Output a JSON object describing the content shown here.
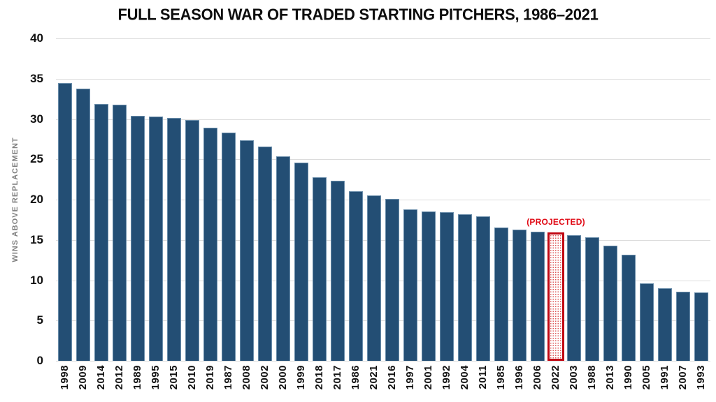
{
  "colors": {
    "bar": "#234E74",
    "bar_edge": "#9AB7CF",
    "projected_border": "#C00511",
    "projected_text": "#E00914",
    "gridline": "#DCDCDC",
    "axis_text": "#111111",
    "ylabel_text": "#7F7F7F",
    "background": "#FFFFFF"
  },
  "chart_data": {
    "type": "bar",
    "title": "FULL SEASON WAR OF TRADED STARTING PITCHERS, 1986–2021",
    "xlabel": "",
    "ylabel": "WINS ABOVE REPLACEMENT",
    "ylim": [
      0,
      40
    ],
    "yticks": [
      40,
      35,
      30,
      25,
      20,
      15,
      10,
      5,
      0
    ],
    "grid": true,
    "legend": "none",
    "categories": [
      "1998",
      "2009",
      "2014",
      "2012",
      "1989",
      "1995",
      "2015",
      "2010",
      "2019",
      "1987",
      "2008",
      "2002",
      "2000",
      "1999",
      "2018",
      "2017",
      "1986",
      "2021",
      "2016",
      "1997",
      "2001",
      "1992",
      "2004",
      "2011",
      "1985",
      "1996",
      "2006",
      "2022",
      "2003",
      "1988",
      "2013",
      "1990",
      "2005",
      "1991",
      "2007",
      "1993"
    ],
    "values": [
      34.5,
      33.8,
      31.9,
      31.8,
      30.4,
      30.3,
      30.1,
      29.9,
      28.9,
      28.3,
      27.4,
      26.6,
      25.4,
      24.6,
      22.8,
      22.3,
      21.0,
      20.5,
      20.1,
      18.8,
      18.5,
      18.4,
      18.2,
      17.9,
      16.5,
      16.3,
      16.0,
      15.9,
      15.6,
      15.3,
      14.3,
      13.2,
      9.6,
      9.0,
      8.6,
      8.5
    ],
    "highlight": {
      "category": "2022",
      "index": 27,
      "annotation": "(PROJECTED)",
      "style": "red-outline-dotted-fill"
    }
  }
}
